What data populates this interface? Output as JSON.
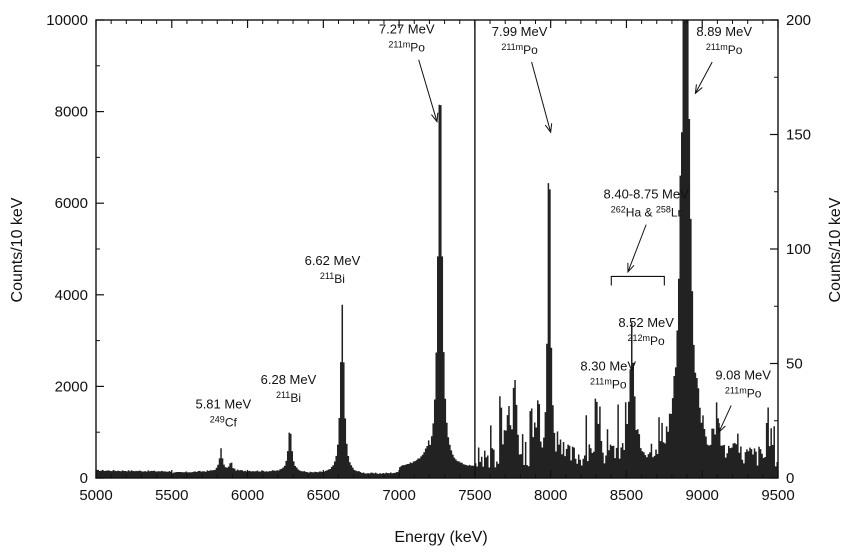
{
  "chart_data": {
    "type": "bar",
    "xlabel": "Energy (keV)",
    "ylabel_left": "Counts/10 keV",
    "ylabel_right": "Counts/10 keV",
    "xlim": [
      5000,
      9500
    ],
    "xticks": [
      "5000",
      "5500",
      "6000",
      "6500",
      "7000",
      "7500",
      "8000",
      "8500",
      "9000",
      "9500"
    ],
    "split_at": 7500,
    "left_ylim": [
      0,
      10000
    ],
    "left_yticks": [
      "0",
      "2000",
      "4000",
      "6000",
      "8000",
      "10000"
    ],
    "right_ylim": [
      0,
      200
    ],
    "right_yticks": [
      "0",
      "50",
      "100",
      "150",
      "200"
    ],
    "grid": false,
    "peaks": [
      {
        "energy": 5825,
        "height": 480,
        "width": 12,
        "panel": "left"
      },
      {
        "energy": 5890,
        "height": 200,
        "width": 10,
        "panel": "left"
      },
      {
        "energy": 6280,
        "height": 950,
        "width": 15,
        "panel": "left"
      },
      {
        "energy": 6625,
        "height": 3700,
        "width": 14,
        "panel": "left"
      },
      {
        "energy": 7270,
        "height": 8700,
        "width": 16,
        "panel": "left"
      },
      {
        "energy": 7990,
        "height": 150,
        "width": 10,
        "panel": "right"
      },
      {
        "energy": 8300,
        "height": 28,
        "width": 8,
        "panel": "right"
      },
      {
        "energy": 8535,
        "height": 48,
        "width": 14,
        "panel": "right"
      },
      {
        "energy": 8890,
        "height": 260,
        "width": 28,
        "panel": "right"
      },
      {
        "energy": 9100,
        "height": 20,
        "width": 10,
        "panel": "right"
      }
    ],
    "annotations": [
      {
        "energy_label": "5.81 MeV",
        "mass": "249",
        "element": "Cf",
        "tx": 5840,
        "ty": 1520,
        "panel": "left"
      },
      {
        "energy_label": "6.28 MeV",
        "mass": "211",
        "element": "Bi",
        "tx": 6270,
        "ty": 2050,
        "panel": "left"
      },
      {
        "energy_label": "6.62 MeV",
        "mass": "211",
        "element": "Bi",
        "tx": 6560,
        "ty": 4650,
        "panel": "left"
      },
      {
        "energy_label": "7.27 MeV",
        "mass": "211m",
        "element": "Po",
        "tx": 7050,
        "ty": 9700,
        "panel": "left",
        "arrow_to": [
          7250,
          7780
        ]
      },
      {
        "energy_label": "7.99 MeV",
        "mass": "211m",
        "element": "Po",
        "tx": 7795,
        "ty": 193,
        "panel": "right",
        "arrow_to": [
          8000,
          151
        ]
      },
      {
        "energy_label": "8.89 MeV",
        "mass": "211m",
        "element": "Po",
        "tx": 9145,
        "ty": 193,
        "panel": "right",
        "arrow_to": [
          8955,
          168
        ]
      },
      {
        "energy_label": "8.40-8.75 MeV",
        "mass": "262",
        "element": "Ha",
        "mass2": "258",
        "element2": "Lr",
        "joiner": " & ",
        "tx": 8630,
        "ty": 122,
        "panel": "right",
        "arrow_to": [
          8510,
          90
        ],
        "bracket": [
          8400,
          8750,
          88
        ]
      },
      {
        "energy_label": "8.52 MeV",
        "mass": "212m",
        "element": "Po",
        "tx": 8630,
        "ty": 66,
        "panel": "right"
      },
      {
        "energy_label": "8.30 MeV",
        "mass": "211m",
        "element": "Po",
        "tx": 8380,
        "ty": 47,
        "panel": "right"
      },
      {
        "energy_label": "9.08 MeV",
        "mass": "211m",
        "element": "Po",
        "tx": 9270,
        "ty": 43,
        "panel": "right",
        "arrow_to": [
          9110,
          20
        ]
      }
    ]
  }
}
